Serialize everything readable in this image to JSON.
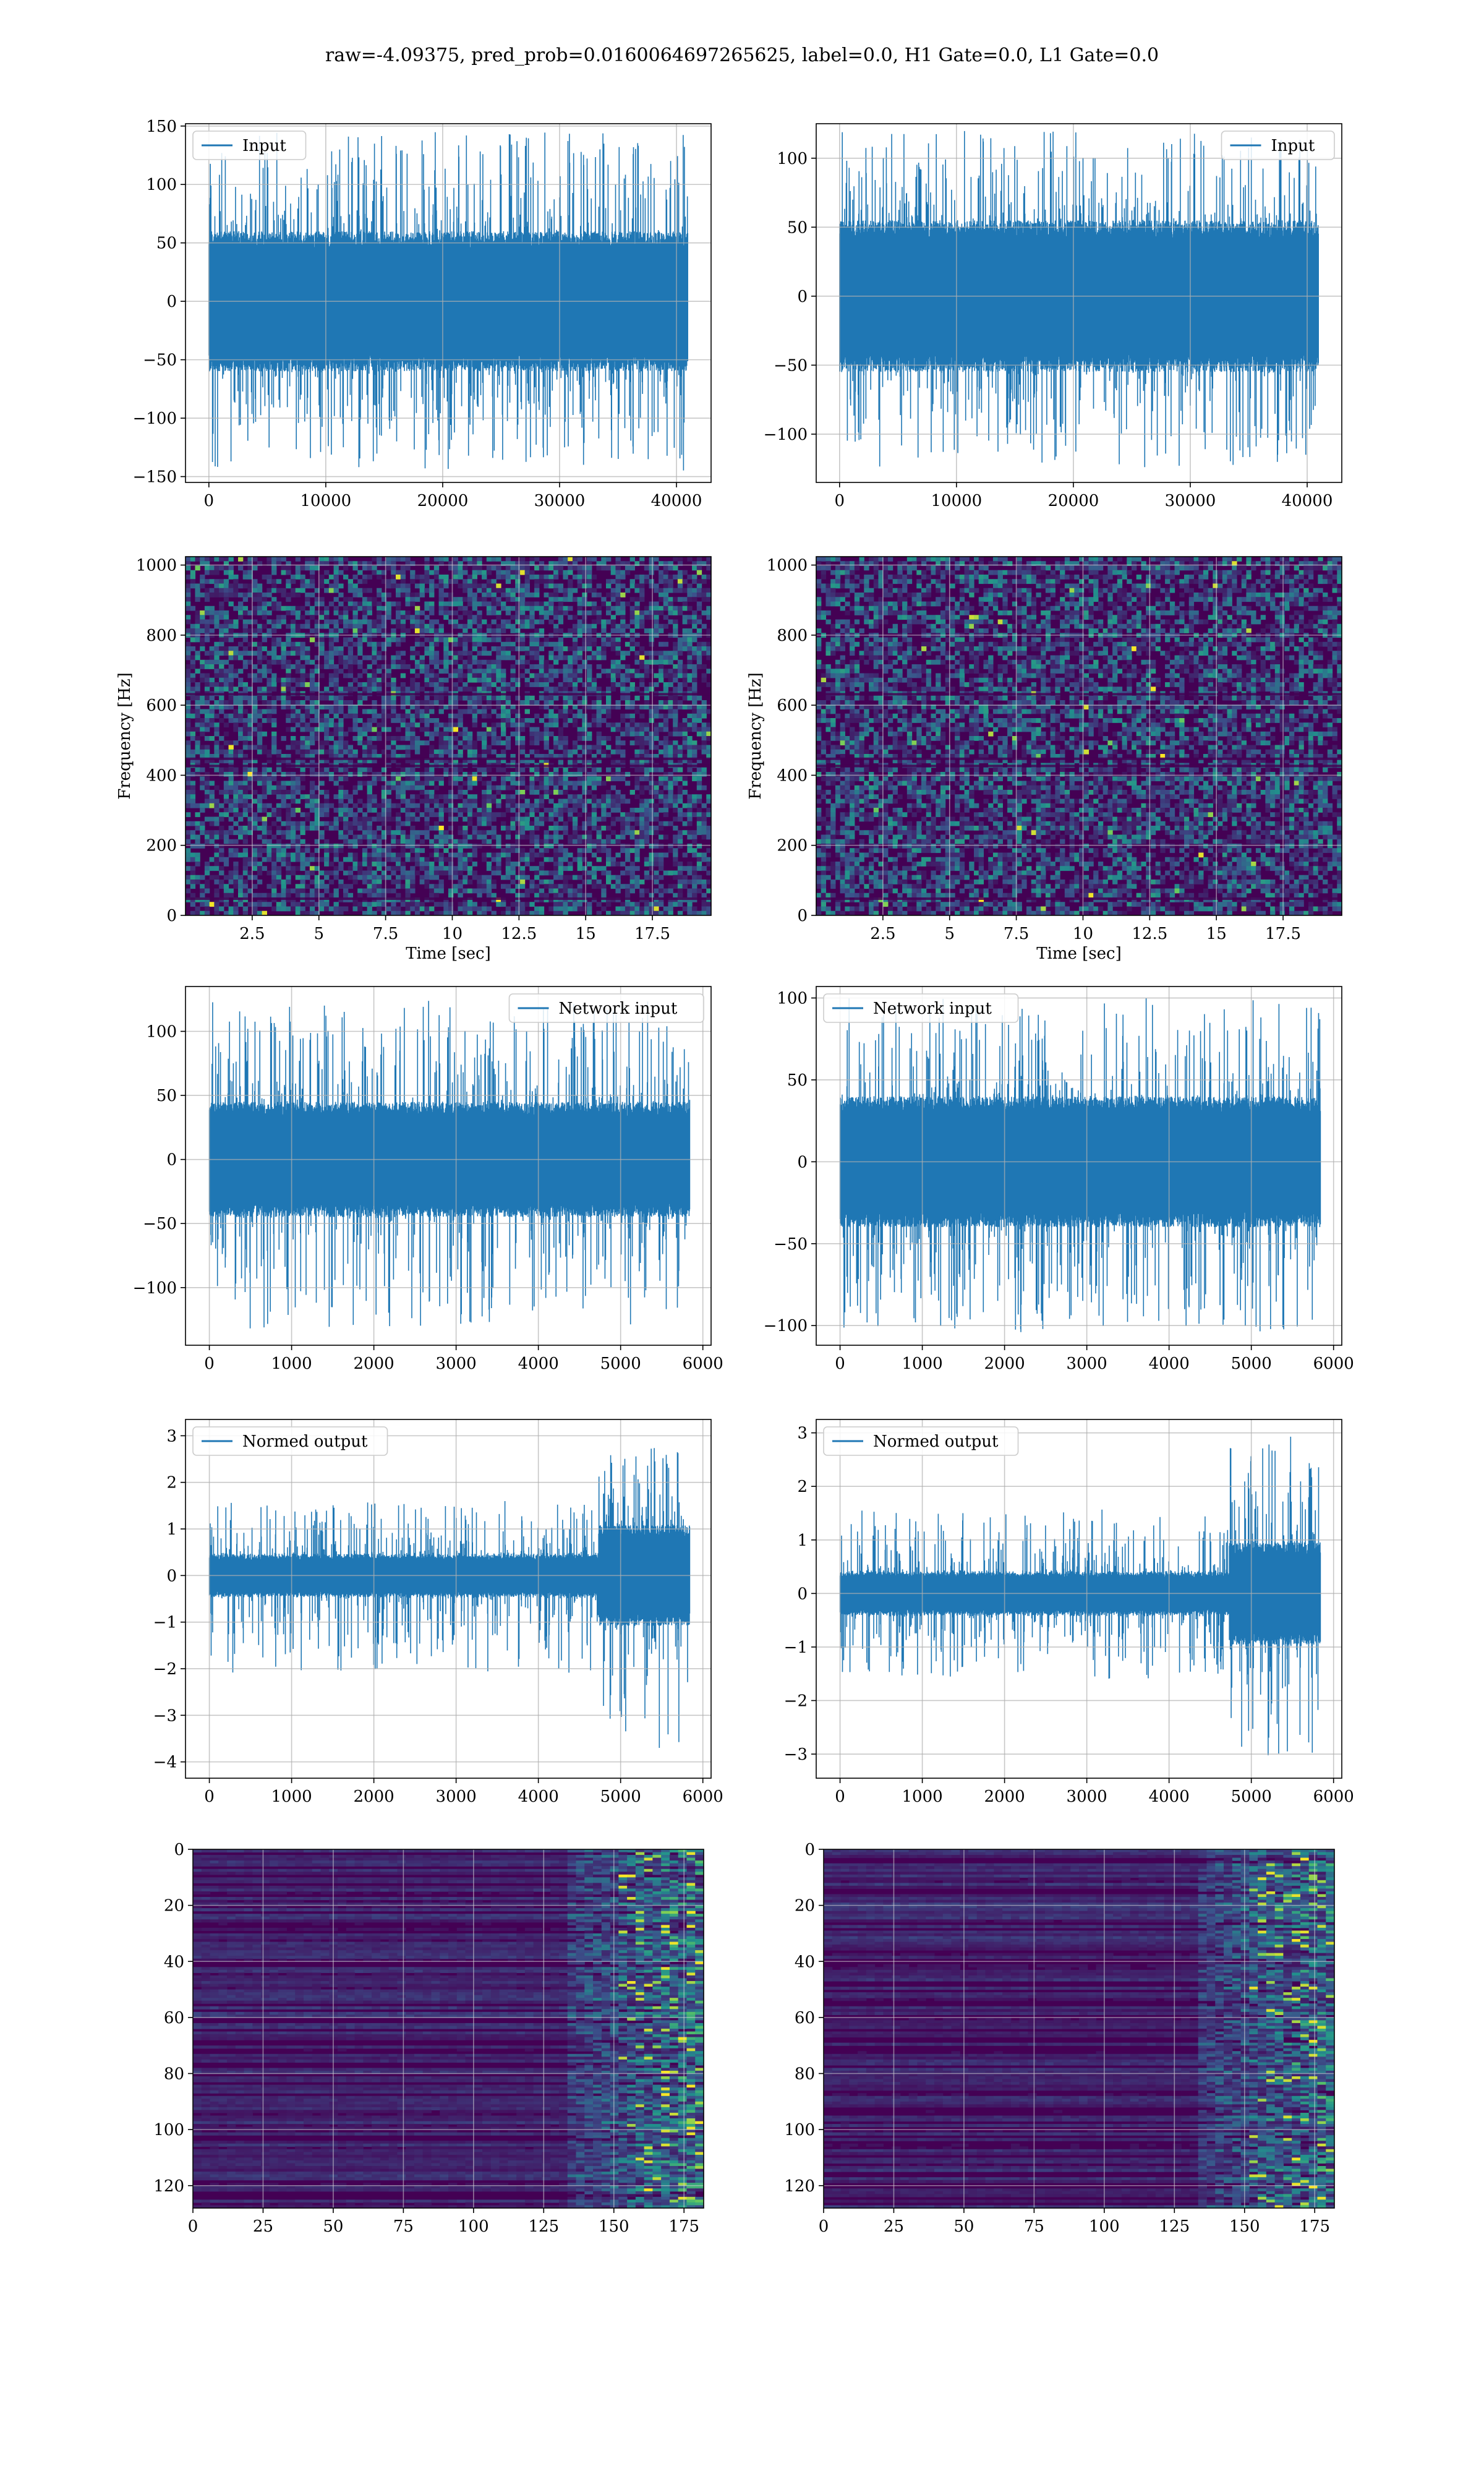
{
  "figure": {
    "suptitle": "raw=-4.09375, pred_prob=0.0160064697265625, label=0.0, H1 Gate=0.0, L1 Gate=0.0"
  },
  "colors": {
    "line": "#1f77b4",
    "grid": "#b0b0b0",
    "viridis_dark": "#440154",
    "viridis_mid": "#21918c",
    "viridis_bright": "#fde725"
  },
  "chart_data": [
    {
      "id": "input_h",
      "type": "line",
      "legend": "Input",
      "legend_loc": "upper-left",
      "xlim": [
        -2000,
        42960
      ],
      "ylim": [
        -155,
        152
      ],
      "xticks": [
        0,
        10000,
        20000,
        30000,
        40000
      ],
      "yticks": [
        -150,
        -100,
        -50,
        0,
        50,
        100,
        150
      ],
      "grid": true,
      "signal": {
        "n": 40960,
        "core": 60,
        "spike_max": 145,
        "spike_min": -145,
        "profile": "flat"
      }
    },
    {
      "id": "input_l",
      "type": "line",
      "legend": "Input",
      "legend_loc": "upper-right",
      "xlim": [
        -2000,
        42960
      ],
      "ylim": [
        -135,
        125
      ],
      "xticks": [
        0,
        10000,
        20000,
        30000,
        40000
      ],
      "yticks": [
        -100,
        -50,
        0,
        50,
        100
      ],
      "grid": true,
      "signal": {
        "n": 40960,
        "core": 55,
        "spike_max": 120,
        "spike_min": -124,
        "profile": "flat"
      }
    },
    {
      "id": "spec_h",
      "type": "heatmap",
      "xlabel": "Time [sec]",
      "ylabel": "Frequency [Hz]",
      "xlim": [
        0,
        19.7
      ],
      "ylim": [
        0,
        1024
      ],
      "xticks": [
        2.5,
        5.0,
        7.5,
        10.0,
        12.5,
        15.0,
        17.5
      ],
      "yticks": [
        0,
        200,
        400,
        600,
        800,
        1000
      ],
      "grid": true,
      "colormap": "viridis",
      "texture": "speckle"
    },
    {
      "id": "spec_l",
      "type": "heatmap",
      "xlabel": "Time [sec]",
      "ylabel": "Frequency [Hz]",
      "xlim": [
        0,
        19.7
      ],
      "ylim": [
        0,
        1024
      ],
      "xticks": [
        2.5,
        5.0,
        7.5,
        10.0,
        12.5,
        15.0,
        17.5
      ],
      "yticks": [
        0,
        200,
        400,
        600,
        800,
        1000
      ],
      "grid": true,
      "colormap": "viridis",
      "texture": "speckle"
    },
    {
      "id": "net_h",
      "type": "line",
      "legend": "Network input",
      "legend_loc": "upper-right",
      "xlim": [
        -290,
        6100
      ],
      "ylim": [
        -145,
        135
      ],
      "xticks": [
        0,
        1000,
        2000,
        3000,
        4000,
        5000,
        6000
      ],
      "yticks": [
        -100,
        -50,
        0,
        50,
        100
      ],
      "grid": true,
      "signal": {
        "n": 5840,
        "core": 45,
        "spike_max": 124,
        "spike_min": -132,
        "profile": "flat"
      }
    },
    {
      "id": "net_l",
      "type": "line",
      "legend": "Network input",
      "legend_loc": "upper-left",
      "xlim": [
        -290,
        6100
      ],
      "ylim": [
        -112,
        107
      ],
      "xticks": [
        0,
        1000,
        2000,
        3000,
        4000,
        5000,
        6000
      ],
      "yticks": [
        -100,
        -50,
        0,
        50,
        100
      ],
      "grid": true,
      "signal": {
        "n": 5840,
        "core": 40,
        "spike_max": 100,
        "spike_min": -104,
        "profile": "flat"
      }
    },
    {
      "id": "norm_h",
      "type": "line",
      "legend": "Normed output",
      "legend_loc": "upper-left",
      "xlim": [
        -290,
        6100
      ],
      "ylim": [
        -4.35,
        3.35
      ],
      "xticks": [
        0,
        1000,
        2000,
        3000,
        4000,
        5000,
        6000
      ],
      "yticks": [
        -4,
        -3,
        -2,
        -1,
        0,
        1,
        2,
        3
      ],
      "grid": true,
      "signal": {
        "n": 5840,
        "core": 0.45,
        "spike_max": 3.0,
        "spike_min": -4.09,
        "profile": "rise_late"
      }
    },
    {
      "id": "norm_l",
      "type": "line",
      "legend": "Normed output",
      "legend_loc": "upper-left",
      "xlim": [
        -290,
        6100
      ],
      "ylim": [
        -3.45,
        3.25
      ],
      "xticks": [
        0,
        1000,
        2000,
        3000,
        4000,
        5000,
        6000
      ],
      "yticks": [
        -3,
        -2,
        -1,
        0,
        1,
        2,
        3
      ],
      "grid": true,
      "signal": {
        "n": 5840,
        "core": 0.4,
        "spike_max": 3.0,
        "spike_min": -3.1,
        "profile": "rise_late"
      }
    },
    {
      "id": "feat_h",
      "type": "heatmap",
      "xlim": [
        0,
        182
      ],
      "ylim": [
        128,
        0
      ],
      "xticks": [
        0,
        25,
        50,
        75,
        100,
        125,
        150,
        175
      ],
      "yticks": [
        0,
        20,
        40,
        60,
        80,
        100,
        120
      ],
      "grid": true,
      "colormap": "viridis",
      "texture": "rows"
    },
    {
      "id": "feat_l",
      "type": "heatmap",
      "xlim": [
        0,
        182
      ],
      "ylim": [
        128,
        0
      ],
      "xticks": [
        0,
        25,
        50,
        75,
        100,
        125,
        150,
        175
      ],
      "yticks": [
        0,
        20,
        40,
        60,
        80,
        100,
        120
      ],
      "grid": true,
      "colormap": "viridis",
      "texture": "rows"
    }
  ]
}
